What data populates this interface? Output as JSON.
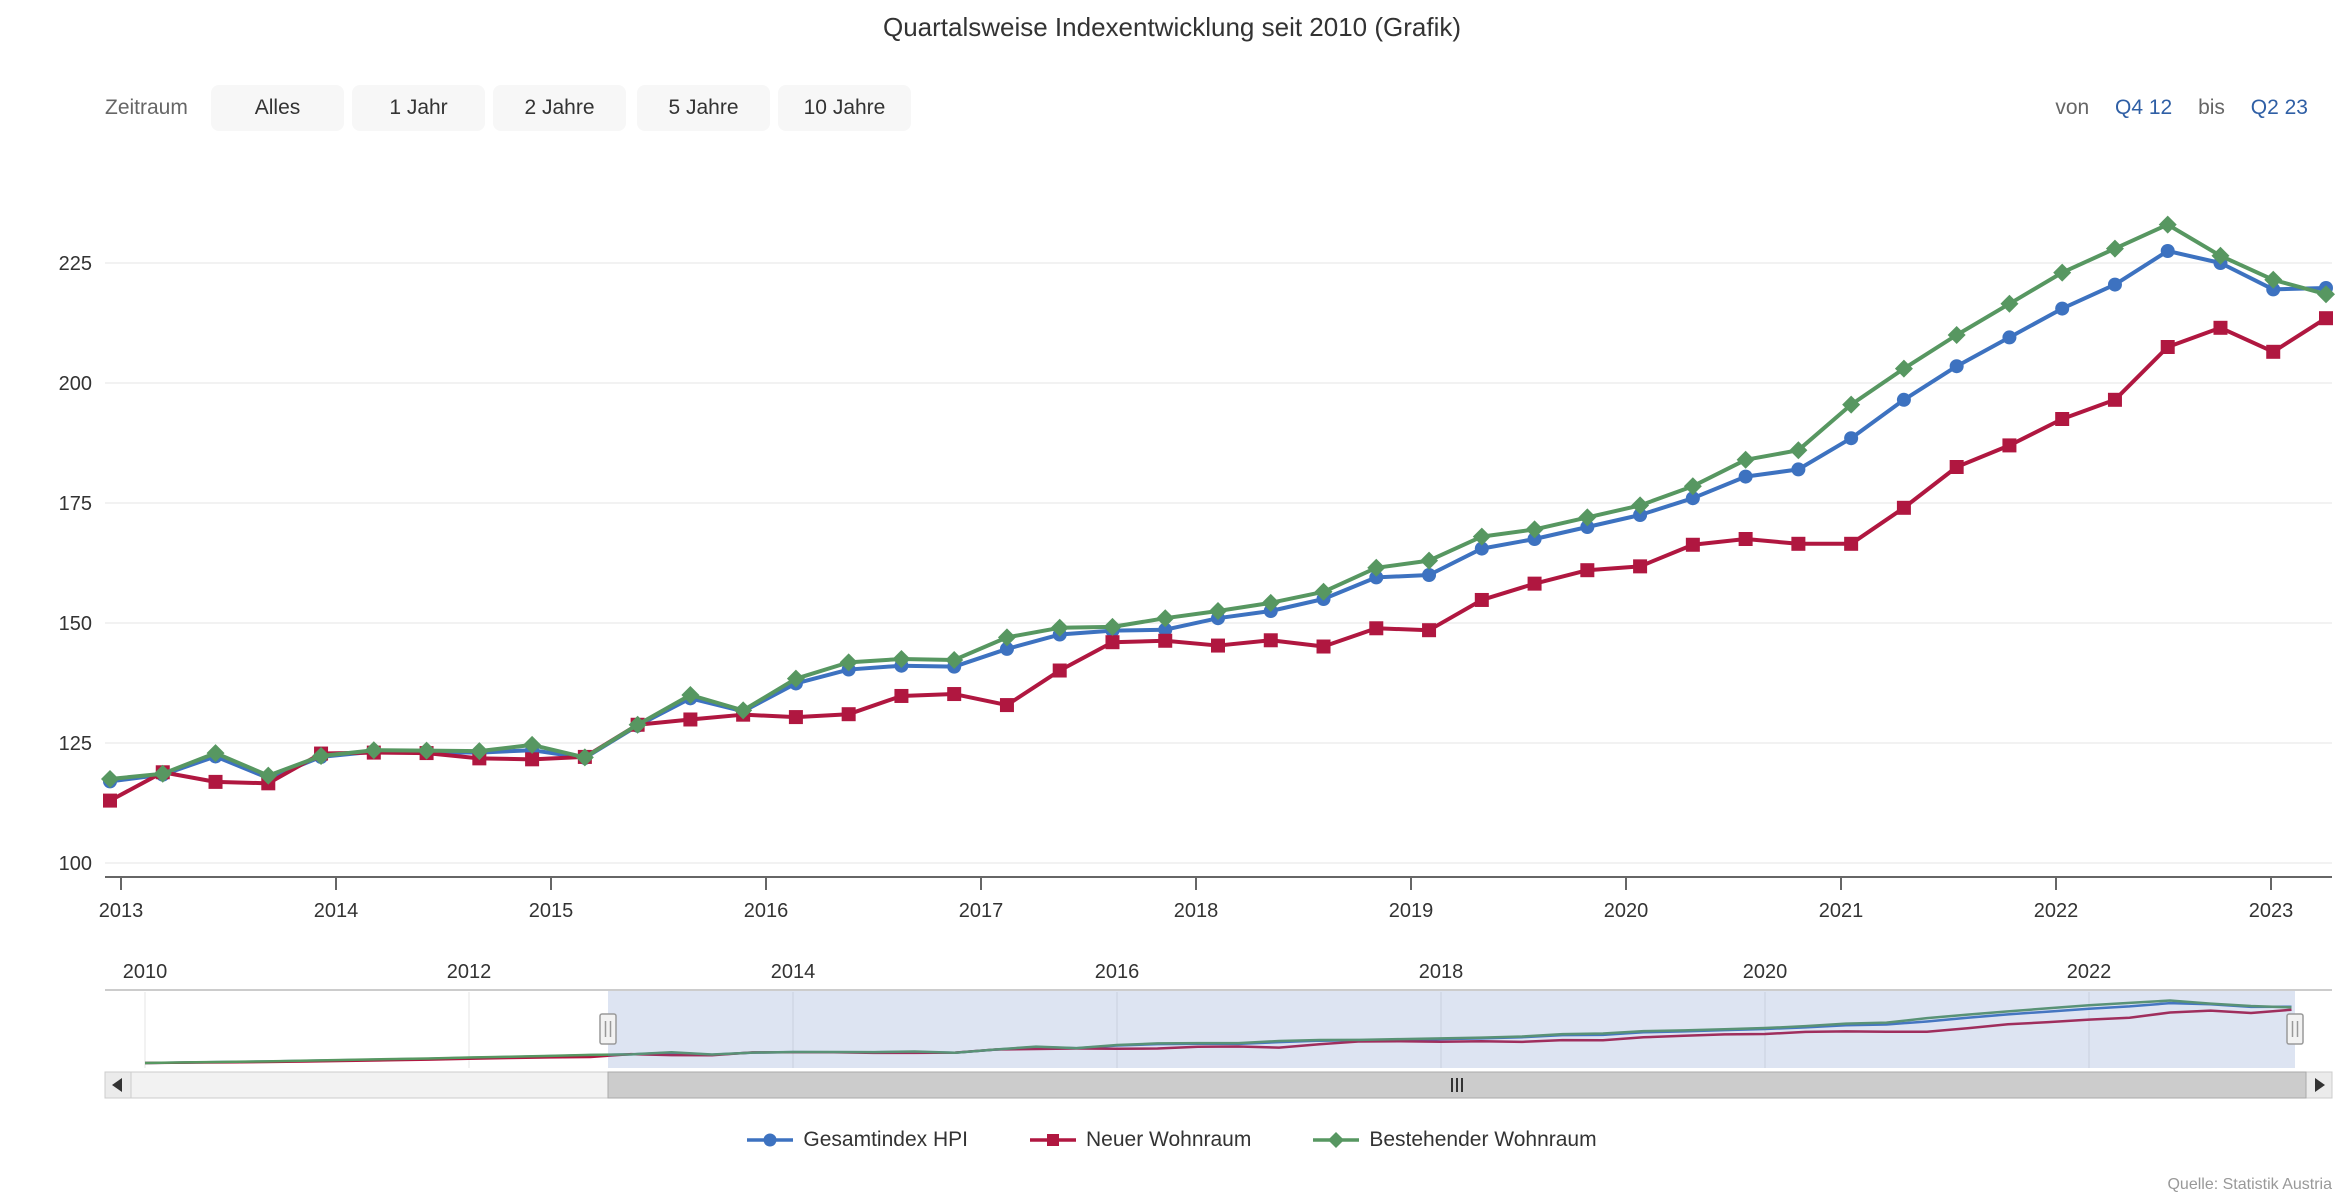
{
  "title": "Quartalsweise Indexentwicklung seit 2010 (Grafik)",
  "range_selector": {
    "label": "Zeitraum",
    "buttons": [
      "Alles",
      "1 Jahr",
      "2 Jahre",
      "5 Jahre",
      "10 Jahre"
    ],
    "von_label": "von",
    "von_value": "Q4 12",
    "bis_label": "bis",
    "bis_value": "Q2 23"
  },
  "source": "Quelle: Statistik Austria",
  "chart_data": {
    "type": "line",
    "title": "Quartalsweise Indexentwicklung seit 2010 (Grafik)",
    "xlabel": "",
    "ylabel": "",
    "ylim": [
      97,
      240
    ],
    "grid": true,
    "legend_position": "bottom",
    "yticks": [
      100,
      125,
      150,
      175,
      200,
      225
    ],
    "xticks_years": [
      "2013",
      "2014",
      "2015",
      "2016",
      "2017",
      "2018",
      "2019",
      "2020",
      "2021",
      "2022",
      "2023"
    ],
    "categories": [
      "Q4 12",
      "Q1 13",
      "Q2 13",
      "Q3 13",
      "Q4 13",
      "Q1 14",
      "Q2 14",
      "Q3 14",
      "Q4 14",
      "Q1 15",
      "Q2 15",
      "Q3 15",
      "Q4 15",
      "Q1 16",
      "Q2 16",
      "Q3 16",
      "Q4 16",
      "Q1 17",
      "Q2 17",
      "Q3 17",
      "Q4 17",
      "Q1 18",
      "Q2 18",
      "Q3 18",
      "Q4 18",
      "Q1 19",
      "Q2 19",
      "Q3 19",
      "Q4 19",
      "Q1 20",
      "Q2 20",
      "Q3 20",
      "Q4 20",
      "Q1 21",
      "Q2 21",
      "Q3 21",
      "Q4 21",
      "Q1 22",
      "Q2 22",
      "Q3 22",
      "Q4 22",
      "Q1 23",
      "Q2 23"
    ],
    "series": [
      {
        "name": "Gesamtindex HPI",
        "color": "#3d72c0",
        "marker": "circle",
        "values": [
          117.0,
          118.4,
          122.2,
          117.7,
          122.1,
          123.2,
          123.1,
          123.0,
          123.5,
          121.9,
          128.6,
          134.3,
          131.6,
          137.4,
          140.3,
          141.1,
          140.9,
          144.6,
          147.6,
          148.4,
          148.6,
          151.0,
          152.5,
          155.0,
          159.5,
          160.0,
          165.5,
          167.5,
          170.0,
          172.5,
          176.0,
          180.5,
          182.0,
          188.5,
          196.5,
          203.5,
          209.5,
          215.5,
          220.5,
          227.5,
          225.0,
          219.5,
          219.8
        ]
      },
      {
        "name": "Neuer Wohnraum",
        "color": "#b01740",
        "marker": "square",
        "values": [
          113.0,
          118.9,
          116.9,
          116.6,
          122.8,
          123.0,
          122.9,
          121.8,
          121.6,
          122.1,
          128.8,
          129.9,
          130.9,
          130.4,
          131.0,
          134.8,
          135.2,
          132.9,
          140.1,
          146.0,
          146.3,
          145.3,
          146.4,
          145.1,
          148.9,
          148.5,
          154.8,
          158.2,
          161.0,
          161.8,
          166.3,
          167.5,
          166.5,
          166.5,
          174.0,
          182.5,
          187.0,
          192.5,
          196.5,
          207.5,
          211.5,
          206.5,
          213.5
        ]
      },
      {
        "name": "Bestehender Wohnraum",
        "color": "#579761",
        "marker": "diamond",
        "values": [
          117.5,
          118.6,
          122.9,
          118.2,
          122.3,
          123.5,
          123.4,
          123.3,
          124.6,
          122.0,
          128.8,
          135.0,
          131.8,
          138.4,
          141.8,
          142.5,
          142.3,
          147.0,
          149.0,
          149.2,
          151.0,
          152.5,
          154.2,
          156.5,
          161.5,
          163.0,
          168.0,
          169.5,
          172.0,
          174.5,
          178.5,
          184.0,
          186.0,
          195.5,
          203.0,
          210.0,
          216.5,
          223.0,
          228.0,
          233.0,
          226.5,
          221.5,
          218.5
        ]
      }
    ],
    "navigator": {
      "years": [
        "2010",
        "2012",
        "2014",
        "2016",
        "2018",
        "2020",
        "2022"
      ],
      "selected_from": "Q4 12",
      "selected_to": "Q2 23",
      "mask_color": "rgba(102,133,194,0.22)",
      "history_2010_2012": {
        "gesamtindex": [
          100.0,
          101.3,
          102.3,
          103.3,
          104.8,
          106.3,
          107.8,
          109.3,
          111.3,
          113.0,
          114.8
        ],
        "neuer": [
          100.0,
          100.8,
          101.5,
          102.2,
          103.2,
          104.6,
          106.0,
          107.4,
          109.2,
          110.8,
          112.2
        ],
        "bestehender": [
          100.0,
          101.5,
          102.6,
          103.7,
          105.2,
          106.8,
          108.3,
          109.8,
          111.8,
          113.5,
          115.3
        ]
      }
    },
    "colors": {
      "gridline": "#e6e6e6",
      "axis_line": "#666666",
      "tick_text": "#333333",
      "scrollbar_track": "#f2f2f2",
      "scrollbar_thumb": "#cccccc",
      "handle_fill": "#f2f2f2",
      "handle_border": "#999999"
    }
  }
}
